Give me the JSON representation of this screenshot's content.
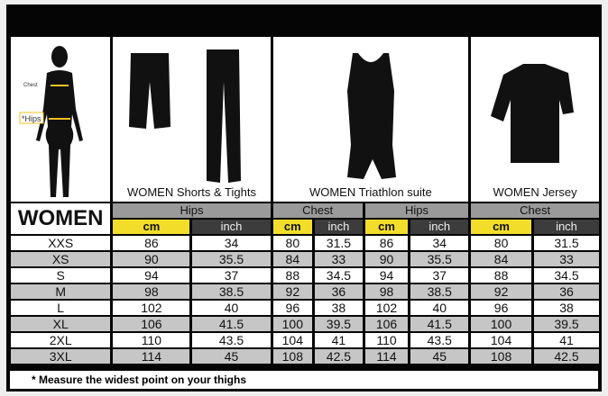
{
  "title": "WOMEN",
  "body_labels": {
    "chest": "Chest",
    "hips": "*Hips"
  },
  "products": [
    {
      "label": "WOMEN Shorts & Tights",
      "measure": "Hips"
    },
    {
      "label": "WOMEN Triathlon suite",
      "measure": "Chest"
    },
    {
      "label": "",
      "measure": "Hips"
    },
    {
      "label": "WOMEN Jersey",
      "measure": "Chest"
    }
  ],
  "units": {
    "cm": "cm",
    "inch": "inch"
  },
  "rows": [
    {
      "size": "XXS",
      "v": [
        "86",
        "34",
        "80",
        "31.5",
        "86",
        "34",
        "80",
        "31.5"
      ]
    },
    {
      "size": "XS",
      "v": [
        "90",
        "35.5",
        "84",
        "33",
        "90",
        "35.5",
        "84",
        "33"
      ]
    },
    {
      "size": "S",
      "v": [
        "94",
        "37",
        "88",
        "34.5",
        "94",
        "37",
        "88",
        "34.5"
      ]
    },
    {
      "size": "M",
      "v": [
        "98",
        "38.5",
        "92",
        "36",
        "98",
        "38.5",
        "92",
        "36"
      ]
    },
    {
      "size": "L",
      "v": [
        "102",
        "40",
        "96",
        "38",
        "102",
        "40",
        "96",
        "38"
      ]
    },
    {
      "size": "XL",
      "v": [
        "106",
        "41.5",
        "100",
        "39.5",
        "106",
        "41.5",
        "100",
        "39.5"
      ]
    },
    {
      "size": "2XL",
      "v": [
        "110",
        "43.5",
        "104",
        "41",
        "110",
        "43.5",
        "104",
        "41"
      ]
    },
    {
      "size": "3XL",
      "v": [
        "114",
        "45",
        "108",
        "42.5",
        "114",
        "45",
        "108",
        "42.5"
      ]
    }
  ],
  "footnote": "* Measure the widest point on your thighs",
  "colors": {
    "cm_header": "#f2de2a",
    "inch_header": "#3c3c3c",
    "group_header": "#9a9a9a",
    "alt_row": "#c6c6c6",
    "measure_arrow": "#f0c020"
  }
}
